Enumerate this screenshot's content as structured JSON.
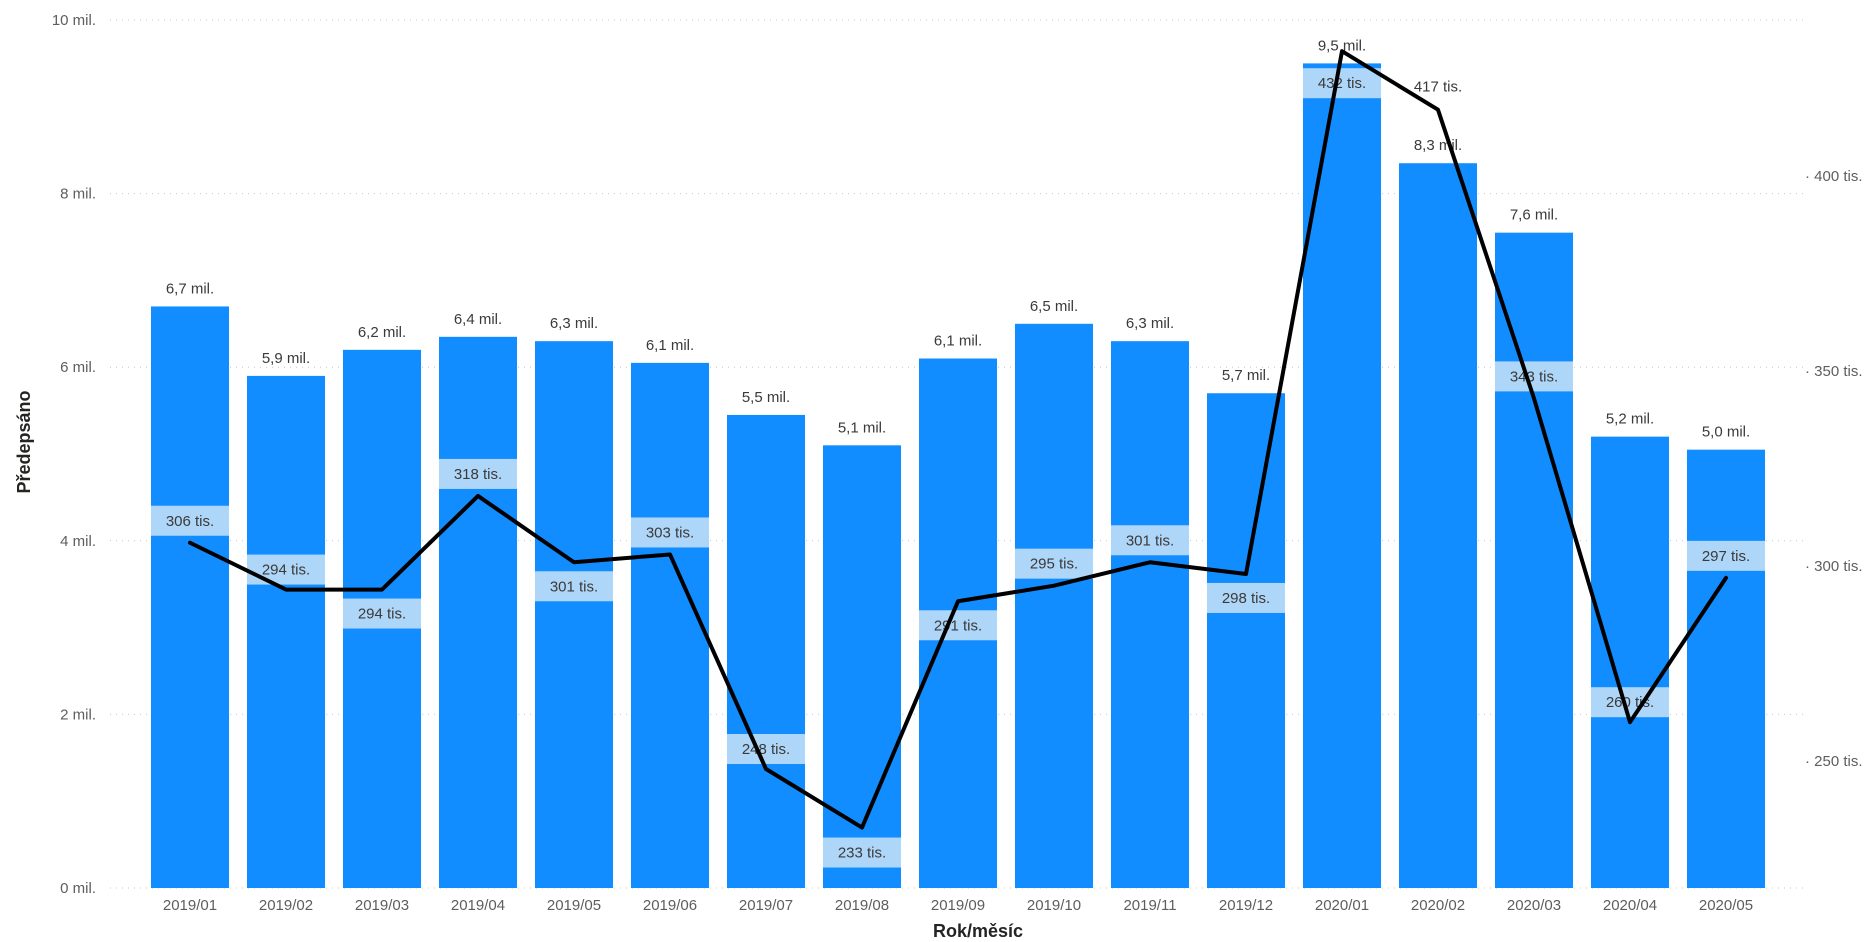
{
  "chart_data": {
    "type": "bar",
    "combo": "bar+line",
    "xlabel": "Rok/měsíc",
    "ylabel": "Předepsáno",
    "categories": [
      "2019/01",
      "2019/02",
      "2019/03",
      "2019/04",
      "2019/05",
      "2019/06",
      "2019/07",
      "2019/08",
      "2019/09",
      "2019/10",
      "2019/11",
      "2019/12",
      "2020/01",
      "2020/02",
      "2020/03",
      "2020/04",
      "2020/05"
    ],
    "bar_series": {
      "color": "#118DFF",
      "values": [
        6.7,
        5.9,
        6.2,
        6.35,
        6.3,
        6.05,
        5.45,
        5.1,
        6.1,
        6.5,
        6.3,
        5.7,
        9.5,
        8.35,
        7.55,
        5.2,
        5.05
      ],
      "labels": [
        "6,7 mil.",
        "5,9 mil.",
        "6,2 mil.",
        "6,4 mil.",
        "6,3 mil.",
        "6,1 mil.",
        "5,5 mil.",
        "5,1 mil.",
        "6,1 mil.",
        "6,5 mil.",
        "6,3 mil.",
        "5,7 mil.",
        "9,5 mil.",
        "8,3 mil.",
        "7,6 mil.",
        "5,2 mil.",
        "5,0 mil."
      ]
    },
    "line_series": {
      "color": "#000000",
      "values": [
        306,
        294,
        294,
        318,
        301,
        303,
        248,
        233,
        291,
        295,
        301,
        298,
        432,
        417,
        343,
        260,
        297
      ],
      "labels": [
        "306 tis.",
        "294 tis.",
        "294 tis.",
        "318 tis.",
        "301 tis.",
        "303 tis.",
        "248 tis.",
        "233 tis.",
        "291 tis.",
        "295 tis.",
        "301 tis.",
        "298 tis.",
        "432 tis.",
        "417 tis.",
        "343 tis.",
        "260 tis.",
        "297 tis."
      ]
    },
    "y_left": {
      "lim": [
        0,
        10
      ],
      "ticks": [
        0,
        2,
        4,
        6,
        8,
        10
      ],
      "tick_labels": [
        "0 mil.",
        "2 mil.",
        "4 mil.",
        "6 mil.",
        "8 mil.",
        "10 mil."
      ]
    },
    "y_right": {
      "lim": [
        217.5,
        440
      ],
      "ticks": [
        250,
        300,
        350,
        400
      ],
      "tick_labels": [
        "250 tis.",
        "300 tis.",
        "350 tis.",
        "400 tis."
      ]
    },
    "grid": true
  }
}
